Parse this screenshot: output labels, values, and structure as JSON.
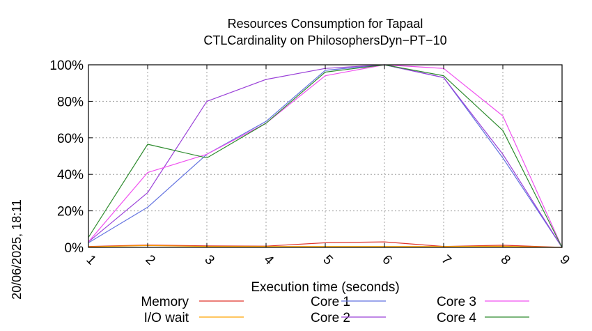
{
  "chart_data": {
    "type": "line",
    "title": "Resources Consumption for Tapaal",
    "subtitle": "CTLCardinality on PhilosophersDyn−PT−10",
    "xlabel": "Execution time (seconds)",
    "ylabel": "",
    "side_label": "20/06/2025, 18:11",
    "x": [
      1,
      2,
      3,
      4,
      5,
      6,
      7,
      8,
      9
    ],
    "xlim": [
      1,
      9
    ],
    "ylim": [
      0,
      100
    ],
    "y_ticks": [
      "0%",
      "20%",
      "40%",
      "60%",
      "80%",
      "100%"
    ],
    "x_ticks": [
      "1",
      "2",
      "3",
      "4",
      "5",
      "6",
      "7",
      "8",
      "9"
    ],
    "grid": true,
    "legend_position": "bottom",
    "series": [
      {
        "name": "Memory",
        "color": "#e0342a",
        "values": [
          0.5,
          1.3,
          0.8,
          0.7,
          2.5,
          3,
          0.5,
          1.2,
          0
        ]
      },
      {
        "name": "I/O wait",
        "color": "#ffa500",
        "values": [
          0.3,
          1.0,
          0.5,
          0.5,
          0.5,
          0.5,
          0.5,
          0.6,
          0
        ]
      },
      {
        "name": "Core 1",
        "color": "#6272e0",
        "values": [
          2.5,
          22,
          51,
          69,
          97,
          100,
          93,
          49,
          0
        ]
      },
      {
        "name": "Core 2",
        "color": "#9a40d8",
        "values": [
          3,
          30,
          80,
          92,
          98,
          100,
          93,
          51,
          0
        ]
      },
      {
        "name": "Core 3",
        "color": "#f050f0",
        "values": [
          3,
          41,
          51,
          68,
          94,
          100,
          98,
          72,
          0
        ]
      },
      {
        "name": "Core 4",
        "color": "#2e8b2e",
        "values": [
          5.5,
          56.5,
          49,
          68,
          96,
          100,
          94,
          64,
          0
        ]
      }
    ]
  }
}
